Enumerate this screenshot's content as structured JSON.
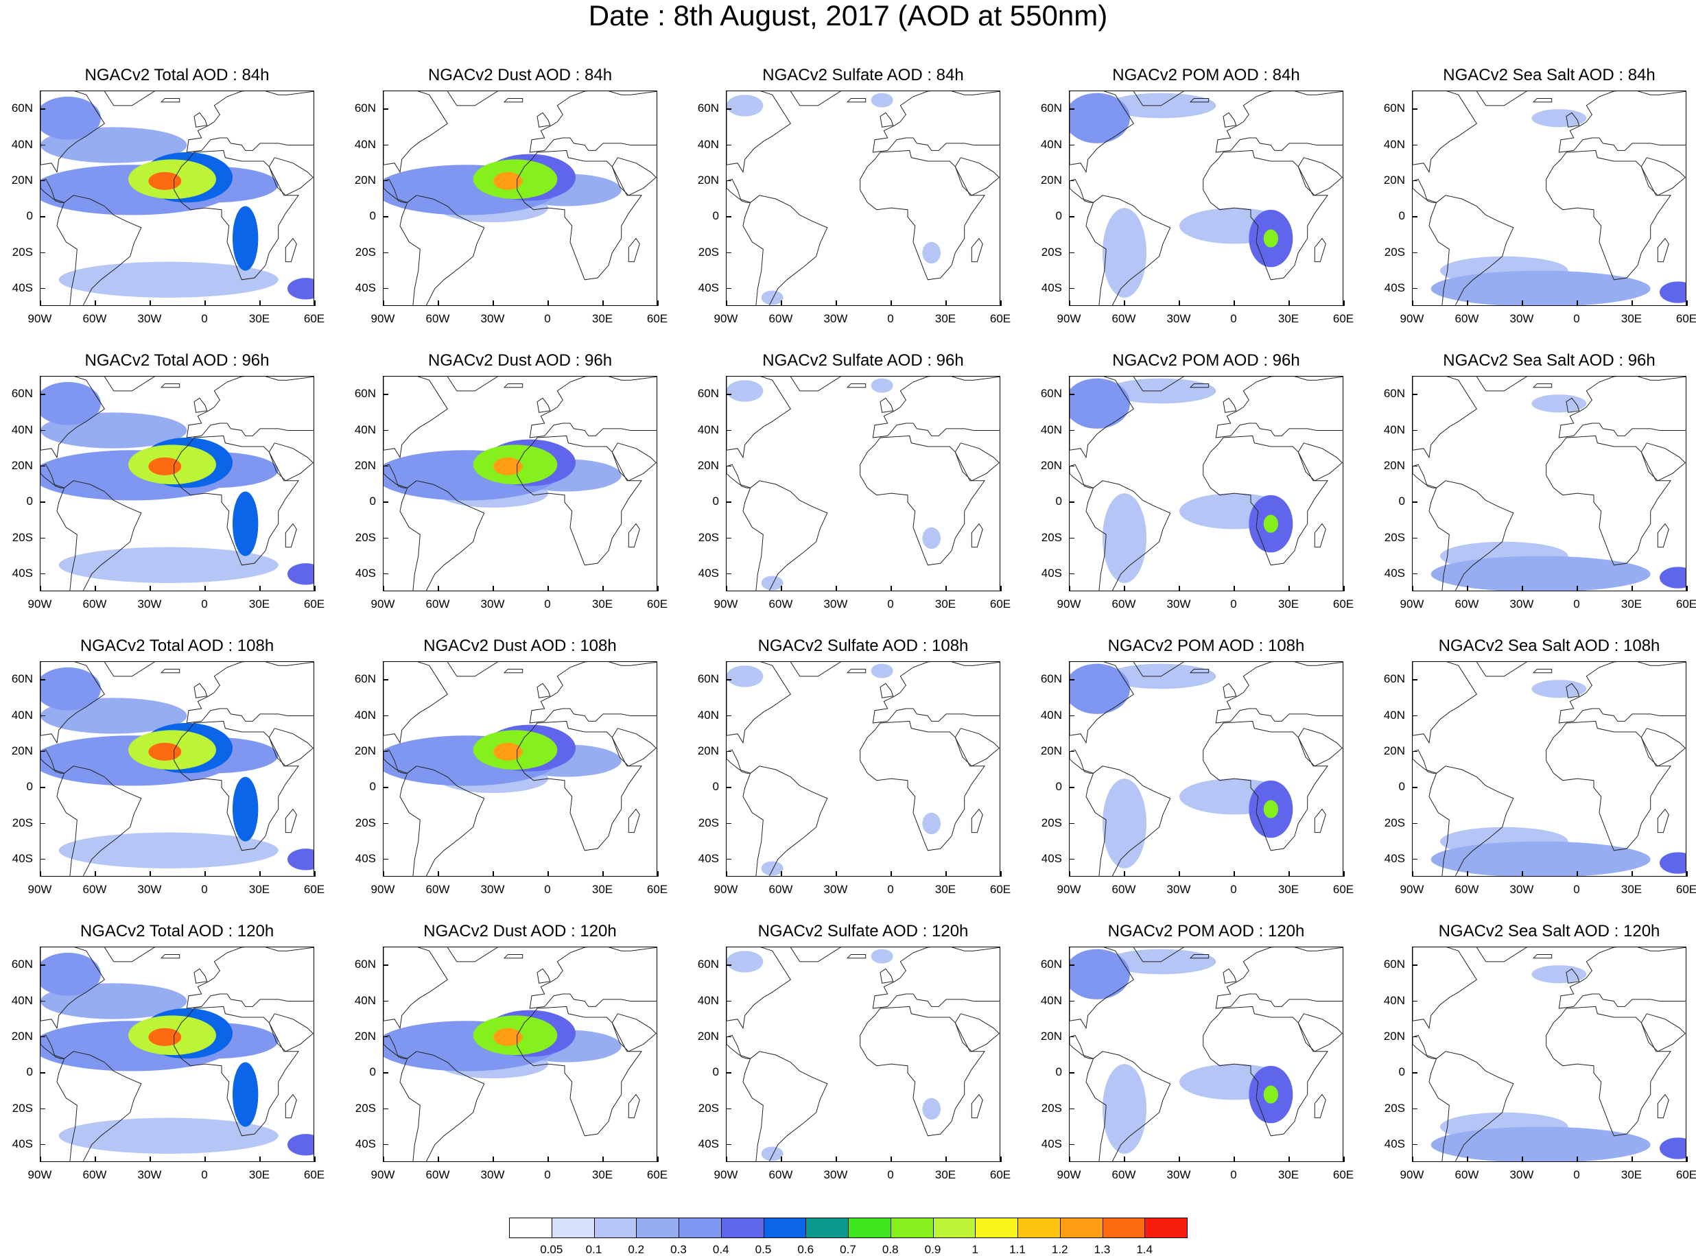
{
  "title": "Date : 8th August, 2017 (AOD at 550nm)",
  "panels": [
    {
      "title": "NGACv2 Total AOD : 84h",
      "species": "total",
      "hour": 84
    },
    {
      "title": "NGACv2 Dust AOD : 84h",
      "species": "dust",
      "hour": 84
    },
    {
      "title": "NGACv2 Sulfate AOD : 84h",
      "species": "sulfate",
      "hour": 84
    },
    {
      "title": "NGACv2 POM AOD : 84h",
      "species": "pom",
      "hour": 84
    },
    {
      "title": "NGACv2 Sea Salt AOD : 84h",
      "species": "seasalt",
      "hour": 84
    },
    {
      "title": "NGACv2 Total AOD : 96h",
      "species": "total",
      "hour": 96
    },
    {
      "title": "NGACv2 Dust AOD : 96h",
      "species": "dust",
      "hour": 96
    },
    {
      "title": "NGACv2 Sulfate AOD : 96h",
      "species": "sulfate",
      "hour": 96
    },
    {
      "title": "NGACv2 POM AOD : 96h",
      "species": "pom",
      "hour": 96
    },
    {
      "title": "NGACv2 Sea Salt AOD : 96h",
      "species": "seasalt",
      "hour": 96
    },
    {
      "title": "NGACv2 Total AOD : 108h",
      "species": "total",
      "hour": 108
    },
    {
      "title": "NGACv2 Dust AOD : 108h",
      "species": "dust",
      "hour": 108
    },
    {
      "title": "NGACv2 Sulfate AOD : 108h",
      "species": "sulfate",
      "hour": 108
    },
    {
      "title": "NGACv2 POM AOD : 108h",
      "species": "pom",
      "hour": 108
    },
    {
      "title": "NGACv2 Sea Salt AOD : 108h",
      "species": "seasalt",
      "hour": 108
    },
    {
      "title": "NGACv2 Total AOD : 120h",
      "species": "total",
      "hour": 120
    },
    {
      "title": "NGACv2 Dust AOD : 120h",
      "species": "dust",
      "hour": 120
    },
    {
      "title": "NGACv2 Sulfate AOD : 120h",
      "species": "sulfate",
      "hour": 120
    },
    {
      "title": "NGACv2 POM AOD : 120h",
      "species": "pom",
      "hour": 120
    },
    {
      "title": "NGACv2 Sea Salt  AOD : 120h",
      "species": "seasalt",
      "hour": 120
    }
  ],
  "map_extent": {
    "lon": [
      -90,
      60
    ],
    "lat": [
      -50,
      70
    ]
  },
  "lat_labels": [
    "60N",
    "40N",
    "20N",
    "0",
    "20S",
    "40S"
  ],
  "lon_labels": [
    "90W",
    "60W",
    "30W",
    "0",
    "30E",
    "60E"
  ],
  "colorbar": {
    "levels": [
      "0.05",
      "0.1",
      "0.2",
      "0.3",
      "0.4",
      "0.5",
      "0.6",
      "0.7",
      "0.8",
      "0.9",
      "1",
      "1.1",
      "1.2",
      "1.3",
      "1.4"
    ],
    "colors": [
      "#ffffff",
      "#d6e0fb",
      "#b4c5f6",
      "#96adf2",
      "#7f97f0",
      "#5f66ec",
      "#0a65e8",
      "#0a9a8e",
      "#3de61d",
      "#85f01c",
      "#bdf436",
      "#f6f41b",
      "#fdc412",
      "#fd9e14",
      "#fe6a10",
      "#f81d0e"
    ]
  },
  "features": {
    "total": [
      {
        "lon": -18,
        "lat": 21,
        "rx": 24,
        "ry": 11,
        "v": 0.9
      },
      {
        "lon": -22,
        "lat": 20,
        "rx": 9,
        "ry": 5,
        "v": 1.3
      },
      {
        "lon": -10,
        "lat": 22,
        "rx": 25,
        "ry": 14,
        "v": 0.5
      },
      {
        "lon": -40,
        "lat": 15,
        "rx": 55,
        "ry": 14,
        "v": 0.3
      },
      {
        "lon": 5,
        "lat": 18,
        "rx": 35,
        "ry": 10,
        "v": 0.3
      },
      {
        "lon": 22,
        "lat": -12,
        "rx": 7,
        "ry": 18,
        "v": 0.5
      },
      {
        "lon": -75,
        "lat": 55,
        "rx": 18,
        "ry": 12,
        "v": 0.35
      },
      {
        "lon": -20,
        "lat": -35,
        "rx": 60,
        "ry": 10,
        "v": 0.15
      },
      {
        "lon": -50,
        "lat": 40,
        "rx": 40,
        "ry": 10,
        "v": 0.2
      },
      {
        "lon": 55,
        "lat": -40,
        "rx": 10,
        "ry": 6,
        "v": 0.4
      }
    ],
    "dust": [
      {
        "lon": -18,
        "lat": 21,
        "rx": 23,
        "ry": 11,
        "v": 0.85
      },
      {
        "lon": -22,
        "lat": 20,
        "rx": 8,
        "ry": 5,
        "v": 1.2
      },
      {
        "lon": -10,
        "lat": 22,
        "rx": 25,
        "ry": 13,
        "v": 0.45
      },
      {
        "lon": -45,
        "lat": 15,
        "rx": 50,
        "ry": 14,
        "v": 0.3
      },
      {
        "lon": 10,
        "lat": 15,
        "rx": 30,
        "ry": 9,
        "v": 0.25
      },
      {
        "lon": -30,
        "lat": 5,
        "rx": 30,
        "ry": 8,
        "v": 0.12
      }
    ],
    "sulfate": [
      {
        "lon": -80,
        "lat": 62,
        "rx": 10,
        "ry": 6,
        "v": 0.12
      },
      {
        "lon": -5,
        "lat": 65,
        "rx": 6,
        "ry": 4,
        "v": 0.12
      },
      {
        "lon": -65,
        "lat": -45,
        "rx": 6,
        "ry": 4,
        "v": 0.12
      },
      {
        "lon": 22,
        "lat": -20,
        "rx": 5,
        "ry": 6,
        "v": 0.1
      }
    ],
    "pom": [
      {
        "lon": 20,
        "lat": -12,
        "rx": 12,
        "ry": 16,
        "v": 0.4
      },
      {
        "lon": 20,
        "lat": -12,
        "rx": 4,
        "ry": 5,
        "v": 0.8
      },
      {
        "lon": -75,
        "lat": 55,
        "rx": 18,
        "ry": 14,
        "v": 0.35
      },
      {
        "lon": -40,
        "lat": 62,
        "rx": 30,
        "ry": 7,
        "v": 0.15
      },
      {
        "lon": 0,
        "lat": -5,
        "rx": 30,
        "ry": 10,
        "v": 0.12
      },
      {
        "lon": -60,
        "lat": -20,
        "rx": 12,
        "ry": 25,
        "v": 0.15
      }
    ],
    "seasalt": [
      {
        "lon": -20,
        "lat": -40,
        "rx": 60,
        "ry": 10,
        "v": 0.2
      },
      {
        "lon": 55,
        "lat": -42,
        "rx": 10,
        "ry": 6,
        "v": 0.45
      },
      {
        "lon": -10,
        "lat": 55,
        "rx": 15,
        "ry": 5,
        "v": 0.12
      },
      {
        "lon": -40,
        "lat": -30,
        "rx": 35,
        "ry": 8,
        "v": 0.12
      }
    ]
  }
}
